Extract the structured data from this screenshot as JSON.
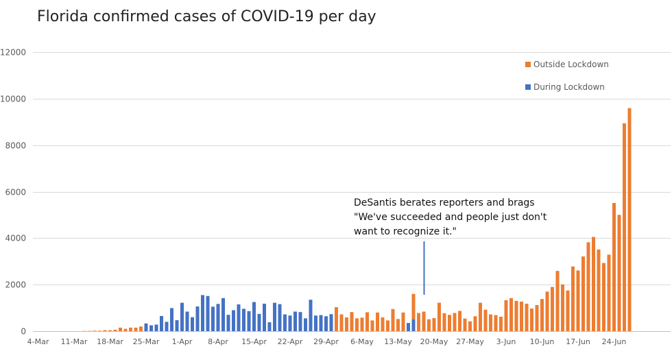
{
  "chart_data": {
    "type": "bar",
    "title": "Florida confirmed cases of COVID-19 per day",
    "xlabel": "",
    "ylabel": "",
    "ylim": [
      0,
      12000
    ],
    "yticks": [
      0,
      2000,
      4000,
      6000,
      8000,
      10000,
      12000
    ],
    "grid": true,
    "legend_position": "top-right",
    "x_tick_labels": [
      "4-Mar",
      "11-Mar",
      "18-Mar",
      "25-Mar",
      "1-Apr",
      "8-Apr",
      "15-Apr",
      "22-Apr",
      "29-Apr",
      "6-May",
      "13-May",
      "20-May",
      "27-May",
      "3-Jun",
      "10-Jun",
      "17-Jun",
      "24-Jun"
    ],
    "first_date": "4-Mar",
    "colors": {
      "Outside Lockdown": "#ED7D31",
      "During Lockdown": "#4472C4"
    },
    "series": [
      {
        "name": "Outside Lockdown",
        "values": [
          0,
          0,
          0,
          0,
          0,
          0,
          0,
          0,
          0,
          10,
          10,
          20,
          20,
          40,
          40,
          60,
          150,
          100,
          150,
          150,
          200,
          null,
          null,
          null,
          null,
          null,
          null,
          null,
          null,
          null,
          null,
          null,
          null,
          null,
          null,
          null,
          null,
          null,
          null,
          null,
          null,
          null,
          null,
          null,
          null,
          null,
          null,
          null,
          null,
          null,
          null,
          null,
          null,
          null,
          null,
          null,
          null,
          null,
          1030,
          720,
          590,
          820,
          550,
          580,
          810,
          460,
          800,
          590,
          460,
          950,
          520,
          800,
          null,
          1600,
          780,
          840,
          510,
          560,
          1220,
          770,
          700,
          780,
          870,
          540,
          420,
          640,
          1220,
          920,
          720,
          690,
          620,
          1330,
          1420,
          1300,
          1270,
          1180,
          970,
          1120,
          1380,
          1700,
          1900,
          2590,
          2010,
          1750,
          2780,
          2610,
          3210,
          3820,
          4050,
          3510,
          2930,
          3290,
          5510,
          5000,
          8940,
          9590
        ]
      },
      {
        "name": "During Lockdown",
        "values": [
          null,
          null,
          null,
          null,
          null,
          null,
          null,
          null,
          null,
          null,
          null,
          null,
          null,
          null,
          null,
          null,
          null,
          null,
          null,
          null,
          null,
          330,
          250,
          280,
          650,
          400,
          990,
          470,
          1220,
          840,
          600,
          1060,
          1550,
          1510,
          1050,
          1170,
          1420,
          700,
          900,
          1150,
          960,
          860,
          1250,
          740,
          1180,
          380,
          1220,
          1160,
          720,
          670,
          840,
          820,
          550,
          1350,
          670,
          690,
          640,
          730,
          null,
          null,
          null,
          null,
          null,
          null,
          null,
          null,
          null,
          null,
          null,
          null,
          null,
          null,
          350,
          500,
          null,
          null,
          null,
          null,
          null,
          null,
          null,
          null,
          null,
          null,
          null,
          null,
          null,
          null,
          null,
          null,
          null,
          null,
          null,
          null,
          null,
          null,
          null,
          null,
          null,
          null,
          null,
          null,
          null,
          null,
          null,
          null,
          null,
          null,
          null,
          null,
          null,
          null,
          null,
          null,
          null,
          null
        ]
      }
    ],
    "annotation": {
      "lines": [
        "DeSantis berates reporters and brags",
        "\"We've succeeded and people just don't",
        "want to recognize it.\""
      ],
      "date": "18-May"
    }
  }
}
